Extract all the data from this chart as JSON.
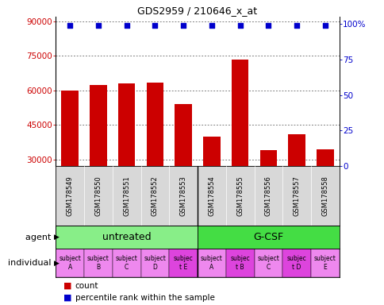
{
  "title": "GDS2959 / 210646_x_at",
  "samples": [
    "GSM178549",
    "GSM178550",
    "GSM178551",
    "GSM178552",
    "GSM178553",
    "GSM178554",
    "GSM178555",
    "GSM178556",
    "GSM178557",
    "GSM178558"
  ],
  "counts": [
    59800,
    62500,
    63000,
    63200,
    54000,
    40000,
    73500,
    34000,
    41000,
    34500
  ],
  "percentile_ranks": [
    99,
    99,
    99,
    99,
    99,
    99,
    99,
    99,
    99,
    99
  ],
  "bar_color": "#cc0000",
  "dot_color": "#0000cc",
  "ylim_left": [
    27000,
    92000
  ],
  "yticks_left": [
    30000,
    45000,
    60000,
    75000,
    90000
  ],
  "ylim_right": [
    0,
    105
  ],
  "yticks_right": [
    0,
    25,
    50,
    75,
    100
  ],
  "yticklabels_right": [
    "0",
    "25",
    "50",
    "75",
    "100%"
  ],
  "agent_groups": [
    {
      "label": "untreated",
      "start": 0,
      "end": 5,
      "color": "#88ee88"
    },
    {
      "label": "G-CSF",
      "start": 5,
      "end": 10,
      "color": "#44dd44"
    }
  ],
  "individual_labels": [
    "subject\nA",
    "subject\nB",
    "subject\nC",
    "subject\nD",
    "subjec\nt E",
    "subject\nA",
    "subjec\nt B",
    "subject\nC",
    "subjec\nt D",
    "subject\nE"
  ],
  "individual_highlight": [
    false,
    false,
    false,
    false,
    true,
    false,
    true,
    false,
    true,
    false
  ],
  "indiv_color_normal": "#ee88ee",
  "indiv_color_highlight": "#dd44dd",
  "left_label_color": "#cc0000",
  "right_label_color": "#0000cc",
  "agent_label": "agent",
  "individual_label": "individual",
  "legend_count": "count",
  "legend_pct": "percentile rank within the sample"
}
